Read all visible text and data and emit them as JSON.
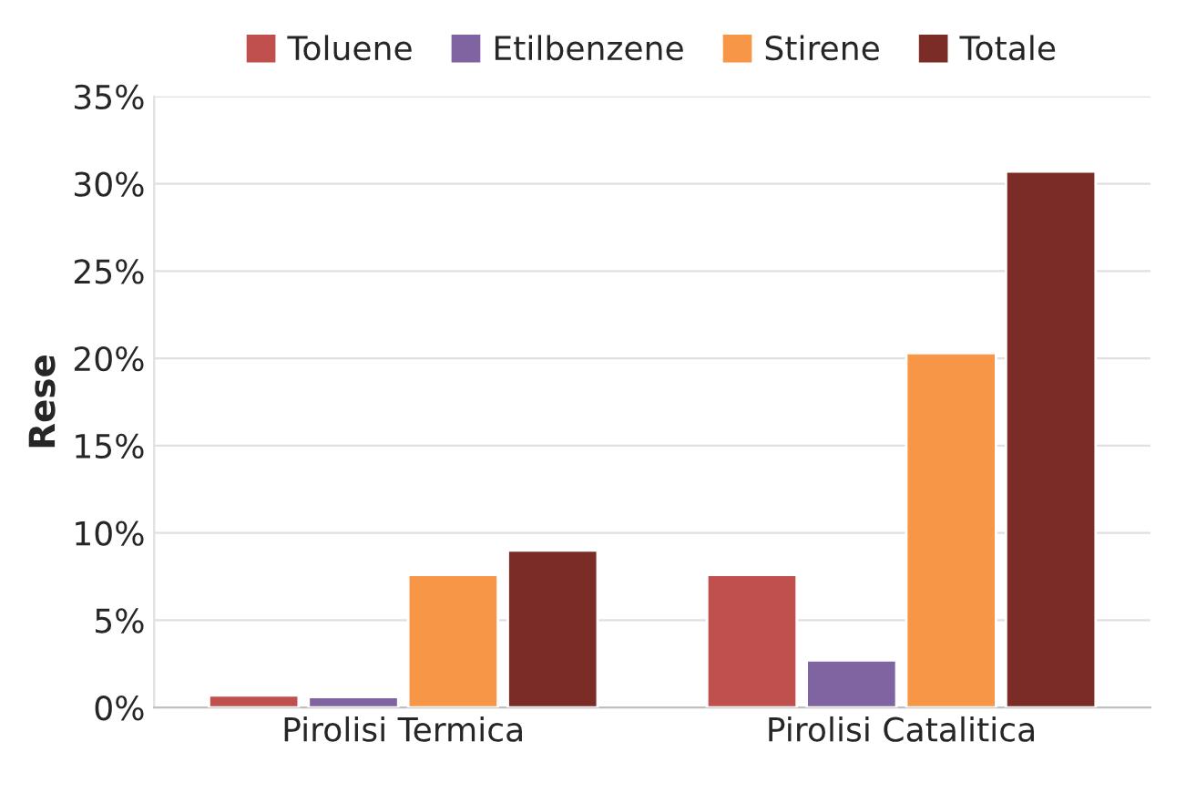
{
  "chart_data": {
    "type": "bar",
    "ylabel": "Rese",
    "categories": [
      "Pirolisi Termica",
      "Pirolisi Catalitica"
    ],
    "series": [
      {
        "name": "Toluene",
        "color": "#c0504d",
        "values": [
          0.7,
          7.6
        ]
      },
      {
        "name": "Etilbenzene",
        "color": "#8064a2",
        "values": [
          0.6,
          2.7
        ]
      },
      {
        "name": "Stirene",
        "color": "#f79646",
        "values": [
          7.6,
          20.3
        ]
      },
      {
        "name": "Totale",
        "color": "#7b2c26",
        "values": [
          9.0,
          30.7
        ]
      }
    ],
    "ylim": [
      0,
      35
    ],
    "yticks": [
      {
        "value": 0,
        "label": "0%"
      },
      {
        "value": 5,
        "label": "5%"
      },
      {
        "value": 10,
        "label": "10%"
      },
      {
        "value": 15,
        "label": "15%"
      },
      {
        "value": 20,
        "label": "20%"
      },
      {
        "value": 25,
        "label": "25%"
      },
      {
        "value": 30,
        "label": "30%"
      },
      {
        "value": 35,
        "label": "35%"
      }
    ],
    "grid": "y",
    "legend": "top"
  }
}
